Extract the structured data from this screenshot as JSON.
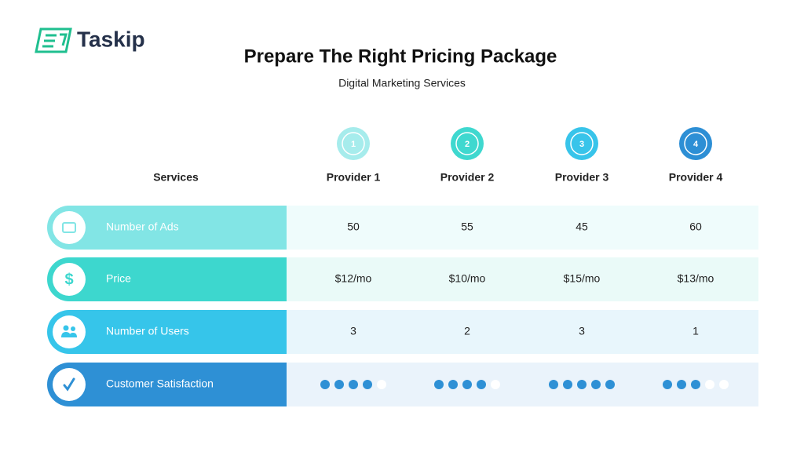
{
  "logo": {
    "text": "Taskip"
  },
  "header": {
    "title": "Prepare The Right Pricing Package",
    "subtitle": "Digital Marketing Services"
  },
  "table": {
    "services_label": "Services",
    "providers": [
      {
        "number": "1",
        "name": "Provider 1",
        "color": "#a6ecec"
      },
      {
        "number": "2",
        "name": "Provider 2",
        "color": "#3fd8cf"
      },
      {
        "number": "3",
        "name": "Provider 3",
        "color": "#38c4ea"
      },
      {
        "number": "4",
        "name": "Provider 4",
        "color": "#2d8fd5"
      }
    ],
    "rows": [
      {
        "label": "Number of Ads",
        "color": "#82e5e5",
        "cells": [
          50,
          55,
          45,
          60
        ]
      },
      {
        "label": "Price",
        "color": "#3dd7ce",
        "cells": [
          "$12/mo",
          "$10/mo",
          "$15/mo",
          "$13/mo"
        ]
      },
      {
        "label": "Number of Users",
        "color": "#36c5ea",
        "cells": [
          3,
          2,
          3,
          1
        ]
      },
      {
        "label": "Customer Satisfaction",
        "color": "#2e90d5",
        "cells": [
          4,
          4,
          5,
          3
        ],
        "rating_max": 5
      }
    ]
  }
}
